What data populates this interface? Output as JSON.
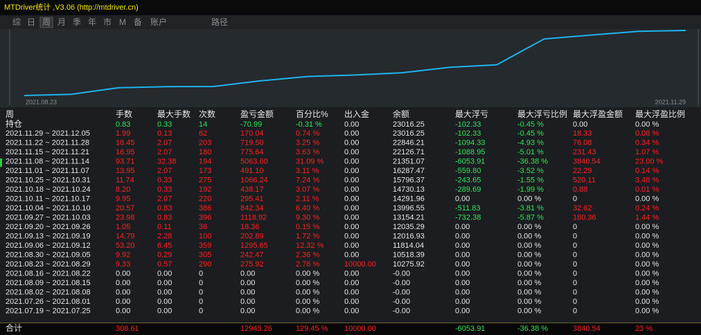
{
  "window": {
    "title": "MTDriver统计 ,V3.06 (http://mtdriver.cn)"
  },
  "tabs": [
    "综",
    "日",
    "周",
    "月",
    "季",
    "年",
    "市",
    "M",
    "备",
    "账户",
    "路径"
  ],
  "active_tab": 2,
  "chart": {
    "x_start_label": "2021.08.23",
    "x_end_label": "2021.11.29",
    "color": "#1fb4ee",
    "values": [
      10275.92,
      10518.39,
      11814.04,
      12016.93,
      12035.29,
      13154.21,
      13996.55,
      14291.96,
      14730.13,
      15796.37,
      16287.47,
      21351.07,
      22126.71,
      22846.21,
      23016.25
    ]
  },
  "table": {
    "header": [
      "周",
      "手数",
      "最大手数",
      "次数",
      "盈亏金额",
      "百分比%",
      "出入金",
      "余额",
      "最大浮亏",
      "最大浮亏比例",
      "最大浮盈金额",
      "最大浮盈比例"
    ],
    "rows": [
      [
        "持仓",
        "0.83",
        "0.33",
        "14",
        "-70.99",
        "-0.31 %",
        "0.00",
        "23016.25",
        "-102.33",
        "-0.45 %",
        "0.00",
        "0.00 %"
      ],
      [
        "2021.11.29 ~ 2021.12.05",
        "1.99",
        "0.13",
        "62",
        "170.04",
        "0.74 %",
        "0.00",
        "23016.25",
        "-102.33",
        "-0.45 %",
        "18.33",
        "0.08 %"
      ],
      [
        "2021.11.22 ~ 2021.11.28",
        "18.45",
        "2.07",
        "203",
        "719.50",
        "3.25 %",
        "0.00",
        "22846.21",
        "-1094.33",
        "-4.93 %",
        "76.08",
        "0.34 %"
      ],
      [
        "2021.11.15 ~ 2021.11.21",
        "16.95",
        "2.07",
        "180",
        "775.64",
        "3.63 %",
        "0.00",
        "22126.71",
        "-1088.95",
        "-5.01 %",
        "231.43",
        "1.07 %"
      ],
      [
        "2021.11.08 ~ 2021.11.14",
        "93.71",
        "32.38",
        "194",
        "5063.60",
        "31.09 %",
        "0.00",
        "21351.07",
        "-6053.91",
        "-36.38 %",
        "3840.54",
        "23.00 %"
      ],
      [
        "2021.11.01 ~ 2021.11.07",
        "13.95",
        "2.07",
        "173",
        "491.10",
        "3.11 %",
        "0.00",
        "16287.47",
        "-559.80",
        "-3.52 %",
        "22.29",
        "0.14 %"
      ],
      [
        "2021.10.25 ~ 2021.10.31",
        "11.74",
        "0.33",
        "275",
        "1066.24",
        "7.24 %",
        "0.00",
        "15796.37",
        "-243.65",
        "-1.55 %",
        "520.11",
        "3.48 %"
      ],
      [
        "2021.10.18 ~ 2021.10.24",
        "8.20",
        "0.33",
        "192",
        "438.17",
        "3.07 %",
        "0.00",
        "14730.13",
        "-289.69",
        "-1.99 %",
        "0.88",
        "0.01 %"
      ],
      [
        "2021.10.11 ~ 2021.10.17",
        "9.95",
        "2.07",
        "220",
        "295.41",
        "2.11 %",
        "0.00",
        "14291.96",
        "0.00",
        "0.00 %",
        "0",
        "0.00 %"
      ],
      [
        "2021.10.04 ~ 2021.10.10",
        "20.57",
        "0.83",
        "386",
        "842.34",
        "6.40 %",
        "0.00",
        "13996.55",
        "-511.83",
        "-3.81 %",
        "32.62",
        "0.24 %"
      ],
      [
        "2021.09.27 ~ 2021.10.03",
        "23.98",
        "0.83",
        "396",
        "1118.92",
        "9.30 %",
        "0.00",
        "13154.21",
        "-732.38",
        "-5.87 %",
        "180.36",
        "1.44 %"
      ],
      [
        "2021.09.20 ~ 2021.09.26",
        "1.05",
        "0.11",
        "36",
        "18.36",
        "0.15 %",
        "0.00",
        "12035.29",
        "0.00",
        "0.00 %",
        "0",
        "0.00 %"
      ],
      [
        "2021.09.13 ~ 2021.09.19",
        "14.79",
        "2.28",
        "100",
        "202.89",
        "1.72 %",
        "0.00",
        "12016.93",
        "0.00",
        "0.00 %",
        "0",
        "0.00 %"
      ],
      [
        "2021.09.06 ~ 2021.09.12",
        "53.20",
        "6.45",
        "359",
        "1295.65",
        "12.32 %",
        "0.00",
        "11814.04",
        "0.00",
        "0.00 %",
        "0",
        "0.00 %"
      ],
      [
        "2021.08.30 ~ 2021.09.05",
        "9.92",
        "0.29",
        "305",
        "242.47",
        "2.36 %",
        "0.00",
        "10518.39",
        "0.00",
        "0.00 %",
        "0",
        "0.00 %"
      ],
      [
        "2021.08.23 ~ 2021.08.29",
        "9.33",
        "0.57",
        "290",
        "275.92",
        "2.76 %",
        "10000.00",
        "10275.92",
        "0.00",
        "0.00 %",
        "0",
        "0.00 %"
      ],
      [
        "2021.08.16 ~ 2021.08.22",
        "0.00",
        "0.00",
        "0",
        "0.00",
        "0.00 %",
        "0.00",
        "-0.00",
        "0.00",
        "0.00 %",
        "0",
        "0.00 %"
      ],
      [
        "2021.08.09 ~ 2021.08.15",
        "0.00",
        "0.00",
        "0",
        "0.00",
        "0.00 %",
        "0.00",
        "-0.00",
        "0.00",
        "0.00 %",
        "0",
        "0.00 %"
      ],
      [
        "2021.08.02 ~ 2021.08.08",
        "0.00",
        "0.00",
        "0",
        "0.00",
        "0.00 %",
        "0.00",
        "-0.00",
        "0.00",
        "0.00 %",
        "0",
        "0.00 %"
      ],
      [
        "2021.07.26 ~ 2021.08.01",
        "0.00",
        "0.00",
        "0",
        "0.00",
        "0.00 %",
        "0.00",
        "-0.00",
        "0.00",
        "0.00 %",
        "0",
        "0.00 %"
      ],
      [
        "2021.07.19 ~ 2021.07.25",
        "0.00",
        "0.00",
        "0",
        "0.00",
        "0.00 %",
        "0.00",
        "-0.00",
        "0.00",
        "0.00 %",
        "0",
        "0.00 %"
      ]
    ],
    "footer": [
      "合计",
      "308.61",
      null,
      null,
      "12945.26",
      "129.45 %",
      "10000.00",
      null,
      "-6053.91",
      "-36.38 %",
      "3840.54",
      "23 %"
    ]
  }
}
